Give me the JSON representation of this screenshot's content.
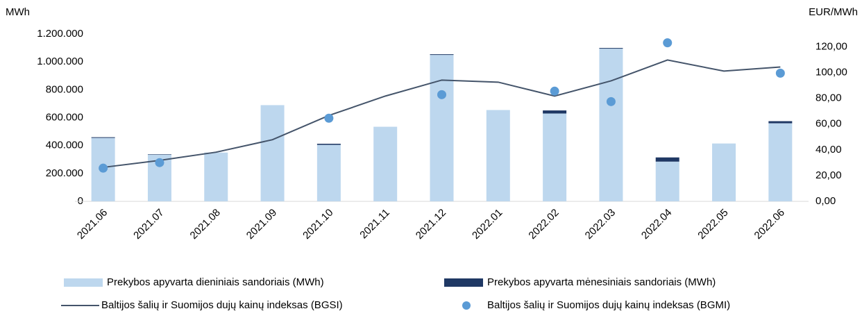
{
  "chart_data": {
    "type": "bar",
    "y_axis_label": "MWh",
    "y2_axis_label": "EUR/MWh",
    "categories": [
      "2021.06",
      "2021.07",
      "2021.08",
      "2021.09",
      "2021.10",
      "2021.11",
      "2021.12",
      "2022.01",
      "2022.02",
      "2022.03",
      "2022.04",
      "2022.05",
      "2022.06"
    ],
    "series": [
      {
        "name": "Prekybos apyvarta dieniniais sandoriais (MWh)",
        "type": "bar",
        "color": "#bdd7ee",
        "values": [
          455000,
          335000,
          350000,
          690000,
          405000,
          535000,
          1050000,
          655000,
          630000,
          1095000,
          285000,
          415000,
          560000
        ]
      },
      {
        "name": "Prekybos apyvarta mėnesiniais sandoriais (MWh)",
        "type": "bar",
        "color": "#1f3864",
        "values": [
          5000,
          3000,
          0,
          0,
          8000,
          0,
          5000,
          0,
          22000,
          5000,
          30000,
          0,
          15000
        ]
      },
      {
        "name": "Baltijos šalių ir Suomijos dujų kainų indeksas (BGSI)",
        "type": "line",
        "axis": "y2",
        "color": "#44546a",
        "values": [
          26.4,
          31.8,
          38.2,
          47.9,
          66.7,
          81.8,
          94.2,
          92.6,
          81.8,
          93.6,
          109.8,
          101.2,
          104.4
        ]
      },
      {
        "name": "Baltijos šalių ir Suomijos dujų kainų indeksas (BGMI)",
        "type": "scatter",
        "axis": "y2",
        "color": "#5b9bd5",
        "values": [
          25.8,
          30.1,
          null,
          null,
          64.6,
          null,
          82.9,
          null,
          85.6,
          77.5,
          123.2,
          null,
          99.6
        ]
      }
    ],
    "ylim": [
      0,
      1200000
    ],
    "yticks": [
      0,
      {
        "value": 200000,
        "label": "200.000"
      },
      {
        "value": 400000,
        "label": "400.000"
      },
      {
        "value": 600000,
        "label": "600.000"
      },
      {
        "value": 800000,
        "label": "800.000"
      },
      {
        "value": 1000000,
        "label": "1.000.000"
      },
      {
        "value": 1200000,
        "label": "1.200.000"
      }
    ],
    "y2lim": [
      0,
      130
    ],
    "y2ticks": [
      {
        "value": 0,
        "label": "0,00"
      },
      {
        "value": 20,
        "label": "20,00"
      },
      {
        "value": 40,
        "label": "40,00"
      },
      {
        "value": 60,
        "label": "60,00"
      },
      {
        "value": 80,
        "label": "80,00"
      },
      {
        "value": 100,
        "label": "100,00"
      },
      {
        "value": 120,
        "label": "120,00"
      }
    ],
    "stacked": true,
    "legend": "bottom"
  }
}
